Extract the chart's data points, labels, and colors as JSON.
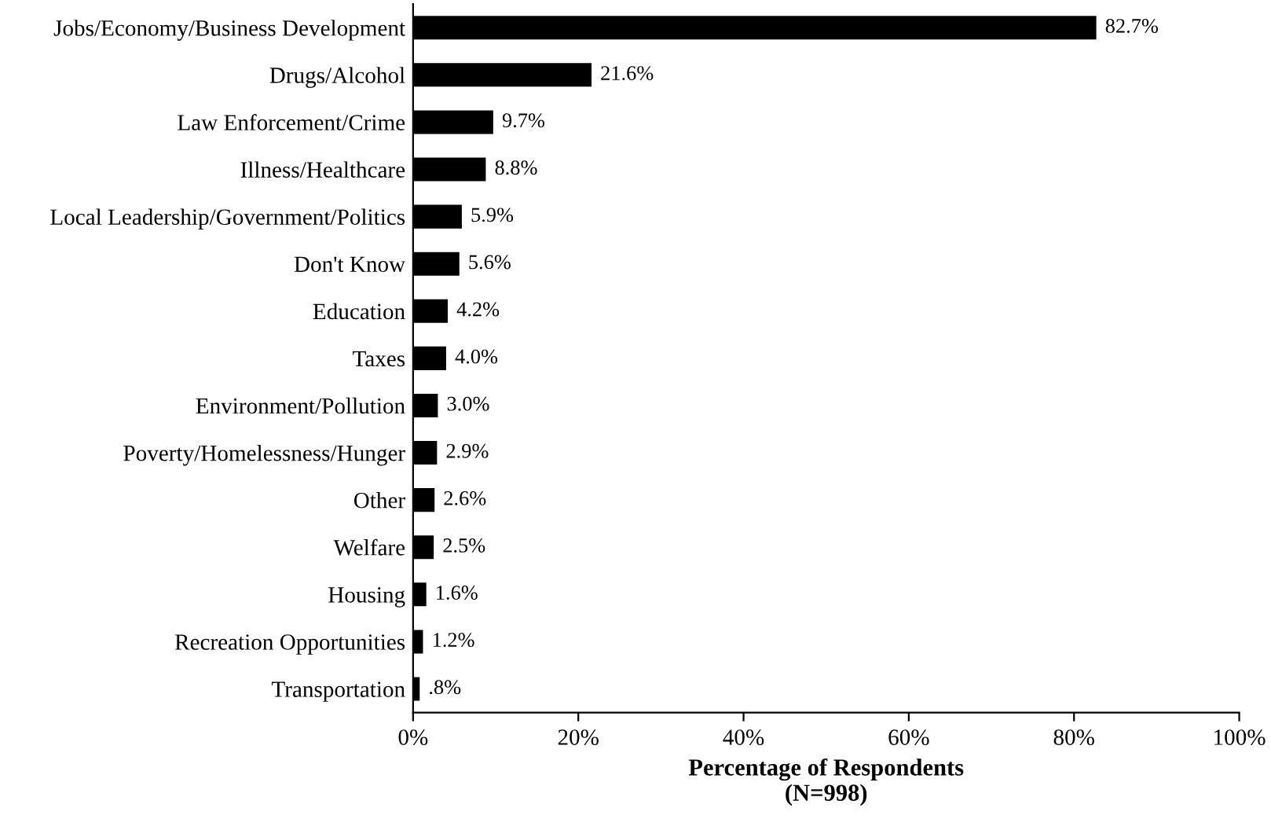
{
  "chart_data": {
    "type": "bar",
    "orientation": "horizontal",
    "xlabel": "Percentage of Respondents\n(N=998)",
    "categories": [
      "Jobs/Economy/Business Development",
      "Drugs/Alcohol",
      "Law Enforcement/Crime",
      "Illness/Healthcare",
      "Local Leadership/Government/Politics",
      "Don't Know",
      "Education",
      "Taxes",
      "Environment/Pollution",
      "Poverty/Homelessness/Hunger",
      "Other",
      "Welfare",
      "Housing",
      "Recreation Opportunities",
      "Transportation"
    ],
    "values": [
      82.7,
      21.6,
      9.7,
      8.8,
      5.9,
      5.6,
      4.2,
      4.0,
      3.0,
      2.9,
      2.6,
      2.5,
      1.6,
      1.2,
      0.8
    ],
    "value_labels": [
      "82.7%",
      "21.6%",
      "9.7%",
      "8.8%",
      "5.9%",
      "5.6%",
      "4.2%",
      "4.0%",
      "3.0%",
      "2.9%",
      "2.6%",
      "2.5%",
      "1.6%",
      "1.2%",
      ".8%"
    ],
    "color": "#000000",
    "xlim": [
      0,
      100
    ],
    "xticks": [
      {
        "value": 0,
        "label": "0%"
      },
      {
        "value": 20,
        "label": "20%"
      },
      {
        "value": 40,
        "label": "40%"
      },
      {
        "value": 60,
        "label": "60%"
      },
      {
        "value": 80,
        "label": "80%"
      },
      {
        "value": 100,
        "label": "100%"
      }
    ],
    "grid": false,
    "legend": false
  }
}
